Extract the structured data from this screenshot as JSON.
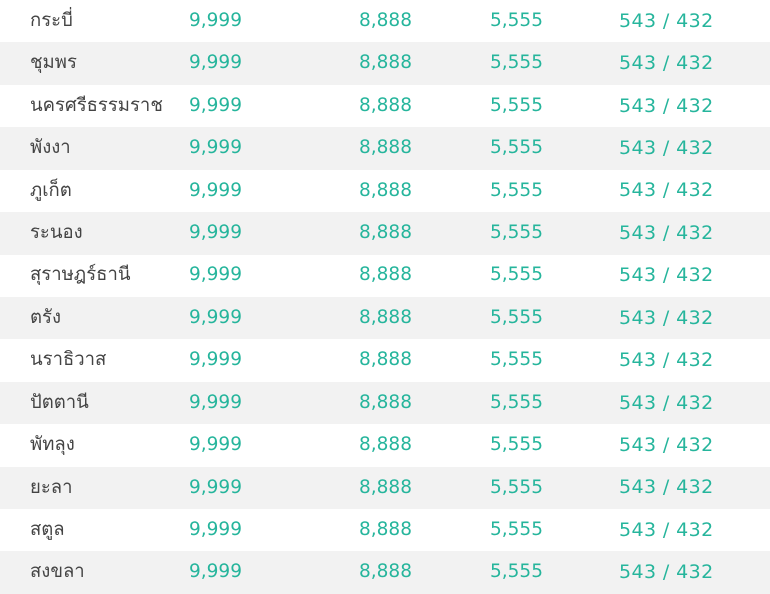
{
  "table": {
    "rows": [
      {
        "province": "กระบี่",
        "value1": "9,999",
        "value2": "8,888",
        "value3": "5,555",
        "ratio": "543 / 432"
      },
      {
        "province": "ชุมพร",
        "value1": "9,999",
        "value2": "8,888",
        "value3": "5,555",
        "ratio": "543 / 432"
      },
      {
        "province": "นครศรีธรรมราช",
        "value1": "9,999",
        "value2": "8,888",
        "value3": "5,555",
        "ratio": "543 / 432"
      },
      {
        "province": "พังงา",
        "value1": "9,999",
        "value2": "8,888",
        "value3": "5,555",
        "ratio": "543 / 432"
      },
      {
        "province": "ภูเก็ต",
        "value1": "9,999",
        "value2": "8,888",
        "value3": "5,555",
        "ratio": "543 / 432"
      },
      {
        "province": "ระนอง",
        "value1": "9,999",
        "value2": "8,888",
        "value3": "5,555",
        "ratio": "543 / 432"
      },
      {
        "province": "สุราษฎร์ธานี",
        "value1": "9,999",
        "value2": "8,888",
        "value3": "5,555",
        "ratio": "543 / 432"
      },
      {
        "province": "ตรัง",
        "value1": "9,999",
        "value2": "8,888",
        "value3": "5,555",
        "ratio": "543 / 432"
      },
      {
        "province": "นราธิวาส",
        "value1": "9,999",
        "value2": "8,888",
        "value3": "5,555",
        "ratio": "543 / 432"
      },
      {
        "province": "ปัตตานี",
        "value1": "9,999",
        "value2": "8,888",
        "value3": "5,555",
        "ratio": "543 / 432"
      },
      {
        "province": "พัทลุง",
        "value1": "9,999",
        "value2": "8,888",
        "value3": "5,555",
        "ratio": "543 / 432"
      },
      {
        "province": "ยะลา",
        "value1": "9,999",
        "value2": "8,888",
        "value3": "5,555",
        "ratio": "543 / 432"
      },
      {
        "province": "สตูล",
        "value1": "9,999",
        "value2": "8,888",
        "value3": "5,555",
        "ratio": "543 / 432"
      },
      {
        "province": "สงขลา",
        "value1": "9,999",
        "value2": "8,888",
        "value3": "5,555",
        "ratio": "543 / 432"
      }
    ]
  }
}
